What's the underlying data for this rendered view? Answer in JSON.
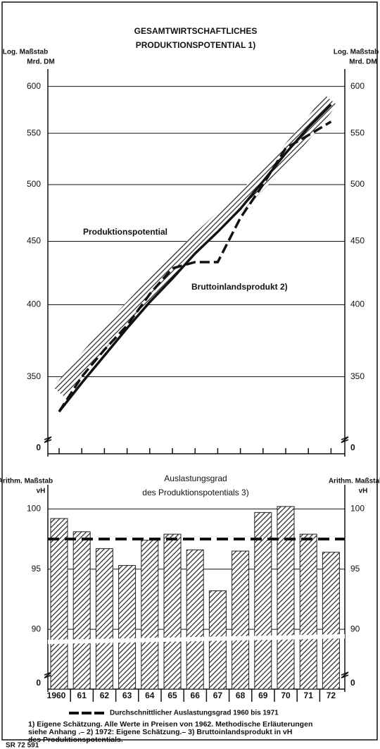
{
  "chart_data": [
    {
      "type": "line",
      "log_scale": true,
      "title": [
        "GESAMTWIRTSCHAFTLICHES",
        "PRODUKTIONSPOTENTIAL 1)"
      ],
      "ylabel": [
        "Log. Maßstab",
        "Mrd. DM"
      ],
      "categories": [
        "1960",
        "61",
        "62",
        "63",
        "64",
        "65",
        "66",
        "67",
        "68",
        "69",
        "70",
        "71",
        "72"
      ],
      "ylim": [
        313,
        610
      ],
      "yticks": [
        350,
        400,
        450,
        500,
        550,
        600
      ],
      "break_label": "0",
      "grid": true,
      "series": [
        {
          "name": "Produktionspotential",
          "style": "hatched-band",
          "color": "#222",
          "values": [
            340,
            358,
            376,
            394,
            412,
            430,
            448,
            466,
            484,
            505,
            528,
            555,
            585
          ]
        },
        {
          "style": "solid",
          "color": "#111",
          "values": [
            328,
            346,
            364,
            383,
            402,
            420,
            440,
            458,
            478,
            503,
            530,
            556,
            580
          ]
        },
        {
          "name": "Bruttoinlandsprodukt 2)",
          "style": "dashed",
          "color": "#111",
          "values": [
            328,
            350,
            368,
            385,
            408,
            428,
            433,
            433,
            470,
            500,
            535,
            548,
            562
          ]
        }
      ]
    },
    {
      "type": "bar",
      "title": [
        "Auslastungsgrad",
        "des Produktionspotentials 3)"
      ],
      "ylabel": [
        "Arithm. Maßstab",
        "vH"
      ],
      "categories": [
        "1960",
        "61",
        "62",
        "63",
        "64",
        "65",
        "66",
        "67",
        "68",
        "69",
        "70",
        "71",
        "72"
      ],
      "values": [
        99.2,
        98.1,
        96.7,
        95.3,
        97.4,
        97.9,
        96.6,
        93.2,
        96.5,
        99.7,
        100.2,
        97.9,
        96.4
      ],
      "ylim": [
        89.6,
        101.3
      ],
      "yticks": [
        90,
        95,
        100
      ],
      "break_label": "0",
      "grid": true,
      "color": "#222",
      "average": {
        "name": "Durchschnittlicher Auslastungsgrad 1960 bis 1971",
        "value": 97.5
      }
    }
  ],
  "footnotes": [
    "1) Eigene Schätzung. Alle Werte in Preisen von 1962. Methodische Erläuterungen",
    "siehe Anhang      .– 2) 1972: Eigene Schätzung.– 3) Bruttoinlandsprodukt in vH",
    "des Produktionspotentials."
  ],
  "source_code": "SR 72 591"
}
